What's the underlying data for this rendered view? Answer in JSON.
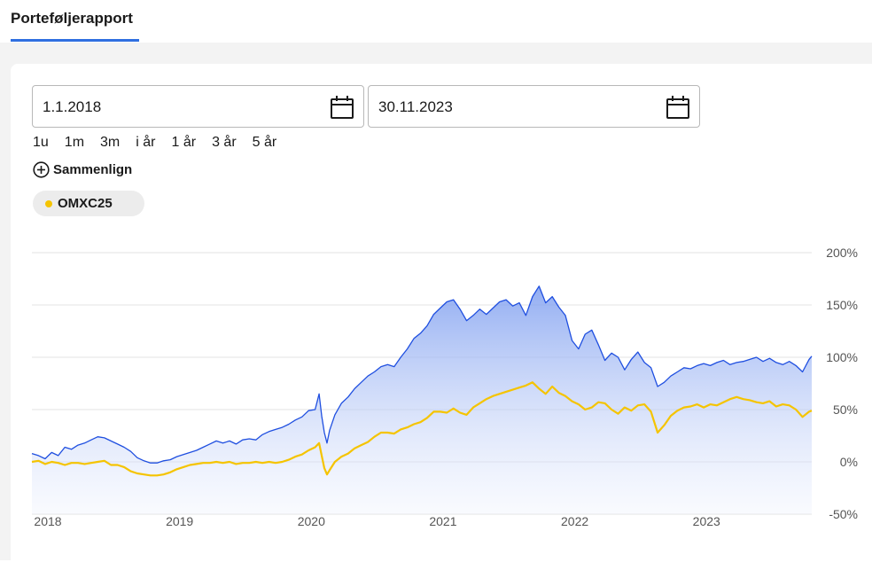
{
  "tab": {
    "label": "Porteføljerapport"
  },
  "date_from": {
    "value": "1.1.2018"
  },
  "date_to": {
    "value": "30.11.2023"
  },
  "ranges": [
    "1u",
    "1m",
    "3m",
    "i år",
    "1 år",
    "3 år",
    "5 år"
  ],
  "compare": {
    "label": "Sammenlign"
  },
  "benchmark_chip": {
    "label": "OMXC25",
    "color": "#f5c400"
  },
  "colors": {
    "accent": "#2f6fe0",
    "portfolio_line": "#1f4fe0",
    "benchmark_line": "#f5c400"
  },
  "chart_data": {
    "type": "line",
    "x_labels": [
      "2018",
      "2019",
      "2020",
      "2021",
      "2022",
      "2023"
    ],
    "y_ticks": [
      "200%",
      "150%",
      "100%",
      "50%",
      "0%",
      "-50%"
    ],
    "ylim": [
      -50,
      200
    ],
    "x_range": [
      2018.0,
      2023.92
    ],
    "grid": true,
    "series": [
      {
        "name": "",
        "color": "#1f4fe0",
        "area": true,
        "points": [
          [
            2018.0,
            8
          ],
          [
            2018.05,
            6
          ],
          [
            2018.1,
            3
          ],
          [
            2018.15,
            9
          ],
          [
            2018.2,
            6
          ],
          [
            2018.25,
            14
          ],
          [
            2018.3,
            12
          ],
          [
            2018.35,
            16
          ],
          [
            2018.4,
            18
          ],
          [
            2018.45,
            21
          ],
          [
            2018.5,
            24
          ],
          [
            2018.55,
            23
          ],
          [
            2018.6,
            20
          ],
          [
            2018.65,
            17
          ],
          [
            2018.7,
            14
          ],
          [
            2018.75,
            10
          ],
          [
            2018.8,
            4
          ],
          [
            2018.85,
            1
          ],
          [
            2018.9,
            -1
          ],
          [
            2018.95,
            -1
          ],
          [
            2019.0,
            1
          ],
          [
            2019.05,
            2
          ],
          [
            2019.1,
            5
          ],
          [
            2019.15,
            7
          ],
          [
            2019.2,
            9
          ],
          [
            2019.25,
            11
          ],
          [
            2019.3,
            14
          ],
          [
            2019.35,
            17
          ],
          [
            2019.4,
            20
          ],
          [
            2019.45,
            18
          ],
          [
            2019.5,
            20
          ],
          [
            2019.55,
            17
          ],
          [
            2019.6,
            21
          ],
          [
            2019.65,
            22
          ],
          [
            2019.7,
            21
          ],
          [
            2019.75,
            26
          ],
          [
            2019.8,
            29
          ],
          [
            2019.85,
            31
          ],
          [
            2019.9,
            33
          ],
          [
            2019.95,
            36
          ],
          [
            2020.0,
            40
          ],
          [
            2020.05,
            43
          ],
          [
            2020.1,
            49
          ],
          [
            2020.15,
            50
          ],
          [
            2020.18,
            65
          ],
          [
            2020.2,
            44
          ],
          [
            2020.22,
            28
          ],
          [
            2020.24,
            18
          ],
          [
            2020.26,
            30
          ],
          [
            2020.3,
            45
          ],
          [
            2020.35,
            56
          ],
          [
            2020.4,
            62
          ],
          [
            2020.45,
            70
          ],
          [
            2020.5,
            76
          ],
          [
            2020.55,
            82
          ],
          [
            2020.6,
            86
          ],
          [
            2020.65,
            91
          ],
          [
            2020.7,
            93
          ],
          [
            2020.75,
            91
          ],
          [
            2020.8,
            100
          ],
          [
            2020.85,
            108
          ],
          [
            2020.9,
            118
          ],
          [
            2020.95,
            123
          ],
          [
            2021.0,
            130
          ],
          [
            2021.05,
            141
          ],
          [
            2021.1,
            147
          ],
          [
            2021.15,
            153
          ],
          [
            2021.2,
            155
          ],
          [
            2021.25,
            146
          ],
          [
            2021.3,
            135
          ],
          [
            2021.35,
            140
          ],
          [
            2021.4,
            146
          ],
          [
            2021.45,
            141
          ],
          [
            2021.5,
            147
          ],
          [
            2021.55,
            153
          ],
          [
            2021.6,
            155
          ],
          [
            2021.65,
            149
          ],
          [
            2021.7,
            152
          ],
          [
            2021.75,
            140
          ],
          [
            2021.8,
            158
          ],
          [
            2021.85,
            168
          ],
          [
            2021.9,
            152
          ],
          [
            2021.95,
            158
          ],
          [
            2022.0,
            148
          ],
          [
            2022.05,
            140
          ],
          [
            2022.1,
            116
          ],
          [
            2022.15,
            108
          ],
          [
            2022.2,
            122
          ],
          [
            2022.25,
            126
          ],
          [
            2022.3,
            112
          ],
          [
            2022.35,
            97
          ],
          [
            2022.4,
            104
          ],
          [
            2022.45,
            100
          ],
          [
            2022.5,
            88
          ],
          [
            2022.55,
            98
          ],
          [
            2022.6,
            105
          ],
          [
            2022.65,
            95
          ],
          [
            2022.7,
            90
          ],
          [
            2022.75,
            72
          ],
          [
            2022.8,
            76
          ],
          [
            2022.85,
            82
          ],
          [
            2022.9,
            86
          ],
          [
            2022.95,
            90
          ],
          [
            2023.0,
            89
          ],
          [
            2023.05,
            92
          ],
          [
            2023.1,
            94
          ],
          [
            2023.15,
            92
          ],
          [
            2023.2,
            95
          ],
          [
            2023.25,
            97
          ],
          [
            2023.3,
            93
          ],
          [
            2023.35,
            95
          ],
          [
            2023.4,
            96
          ],
          [
            2023.45,
            98
          ],
          [
            2023.5,
            100
          ],
          [
            2023.55,
            96
          ],
          [
            2023.6,
            99
          ],
          [
            2023.65,
            95
          ],
          [
            2023.7,
            93
          ],
          [
            2023.75,
            96
          ],
          [
            2023.8,
            92
          ],
          [
            2023.85,
            86
          ],
          [
            2023.9,
            98
          ],
          [
            2023.92,
            101
          ]
        ]
      },
      {
        "name": "OMXC25",
        "color": "#f5c400",
        "area": false,
        "points": [
          [
            2018.0,
            0
          ],
          [
            2018.05,
            1
          ],
          [
            2018.1,
            -2
          ],
          [
            2018.15,
            0
          ],
          [
            2018.2,
            -1
          ],
          [
            2018.25,
            -3
          ],
          [
            2018.3,
            -1
          ],
          [
            2018.35,
            -1
          ],
          [
            2018.4,
            -2
          ],
          [
            2018.45,
            -1
          ],
          [
            2018.5,
            0
          ],
          [
            2018.55,
            1
          ],
          [
            2018.6,
            -3
          ],
          [
            2018.65,
            -3
          ],
          [
            2018.7,
            -5
          ],
          [
            2018.75,
            -9
          ],
          [
            2018.8,
            -11
          ],
          [
            2018.85,
            -12
          ],
          [
            2018.9,
            -13
          ],
          [
            2018.95,
            -13
          ],
          [
            2019.0,
            -12
          ],
          [
            2019.05,
            -10
          ],
          [
            2019.1,
            -7
          ],
          [
            2019.15,
            -5
          ],
          [
            2019.2,
            -3
          ],
          [
            2019.25,
            -2
          ],
          [
            2019.3,
            -1
          ],
          [
            2019.35,
            -1
          ],
          [
            2019.4,
            0
          ],
          [
            2019.45,
            -1
          ],
          [
            2019.5,
            0
          ],
          [
            2019.55,
            -2
          ],
          [
            2019.6,
            -1
          ],
          [
            2019.65,
            -1
          ],
          [
            2019.7,
            0
          ],
          [
            2019.75,
            -1
          ],
          [
            2019.8,
            0
          ],
          [
            2019.85,
            -1
          ],
          [
            2019.9,
            0
          ],
          [
            2019.95,
            2
          ],
          [
            2020.0,
            5
          ],
          [
            2020.05,
            7
          ],
          [
            2020.1,
            11
          ],
          [
            2020.15,
            14
          ],
          [
            2020.18,
            18
          ],
          [
            2020.2,
            6
          ],
          [
            2020.22,
            -6
          ],
          [
            2020.24,
            -12
          ],
          [
            2020.26,
            -8
          ],
          [
            2020.3,
            0
          ],
          [
            2020.35,
            5
          ],
          [
            2020.4,
            8
          ],
          [
            2020.45,
            13
          ],
          [
            2020.5,
            16
          ],
          [
            2020.55,
            19
          ],
          [
            2020.6,
            24
          ],
          [
            2020.65,
            28
          ],
          [
            2020.7,
            28
          ],
          [
            2020.75,
            27
          ],
          [
            2020.8,
            31
          ],
          [
            2020.85,
            33
          ],
          [
            2020.9,
            36
          ],
          [
            2020.95,
            38
          ],
          [
            2021.0,
            42
          ],
          [
            2021.05,
            48
          ],
          [
            2021.1,
            48
          ],
          [
            2021.15,
            47
          ],
          [
            2021.2,
            51
          ],
          [
            2021.25,
            47
          ],
          [
            2021.3,
            45
          ],
          [
            2021.35,
            52
          ],
          [
            2021.4,
            56
          ],
          [
            2021.45,
            60
          ],
          [
            2021.5,
            63
          ],
          [
            2021.55,
            65
          ],
          [
            2021.6,
            67
          ],
          [
            2021.65,
            69
          ],
          [
            2021.7,
            71
          ],
          [
            2021.75,
            73
          ],
          [
            2021.8,
            76
          ],
          [
            2021.85,
            70
          ],
          [
            2021.9,
            65
          ],
          [
            2021.95,
            72
          ],
          [
            2022.0,
            66
          ],
          [
            2022.05,
            63
          ],
          [
            2022.1,
            58
          ],
          [
            2022.15,
            55
          ],
          [
            2022.2,
            50
          ],
          [
            2022.25,
            52
          ],
          [
            2022.3,
            57
          ],
          [
            2022.35,
            56
          ],
          [
            2022.4,
            50
          ],
          [
            2022.45,
            46
          ],
          [
            2022.5,
            52
          ],
          [
            2022.55,
            49
          ],
          [
            2022.6,
            54
          ],
          [
            2022.65,
            55
          ],
          [
            2022.7,
            48
          ],
          [
            2022.75,
            28
          ],
          [
            2022.8,
            35
          ],
          [
            2022.85,
            44
          ],
          [
            2022.9,
            49
          ],
          [
            2022.95,
            52
          ],
          [
            2023.0,
            53
          ],
          [
            2023.05,
            55
          ],
          [
            2023.1,
            52
          ],
          [
            2023.15,
            55
          ],
          [
            2023.2,
            54
          ],
          [
            2023.25,
            57
          ],
          [
            2023.3,
            60
          ],
          [
            2023.35,
            62
          ],
          [
            2023.4,
            60
          ],
          [
            2023.45,
            59
          ],
          [
            2023.5,
            57
          ],
          [
            2023.55,
            56
          ],
          [
            2023.6,
            58
          ],
          [
            2023.65,
            53
          ],
          [
            2023.7,
            55
          ],
          [
            2023.75,
            54
          ],
          [
            2023.8,
            50
          ],
          [
            2023.85,
            43
          ],
          [
            2023.9,
            48
          ],
          [
            2023.92,
            49
          ]
        ]
      }
    ]
  }
}
